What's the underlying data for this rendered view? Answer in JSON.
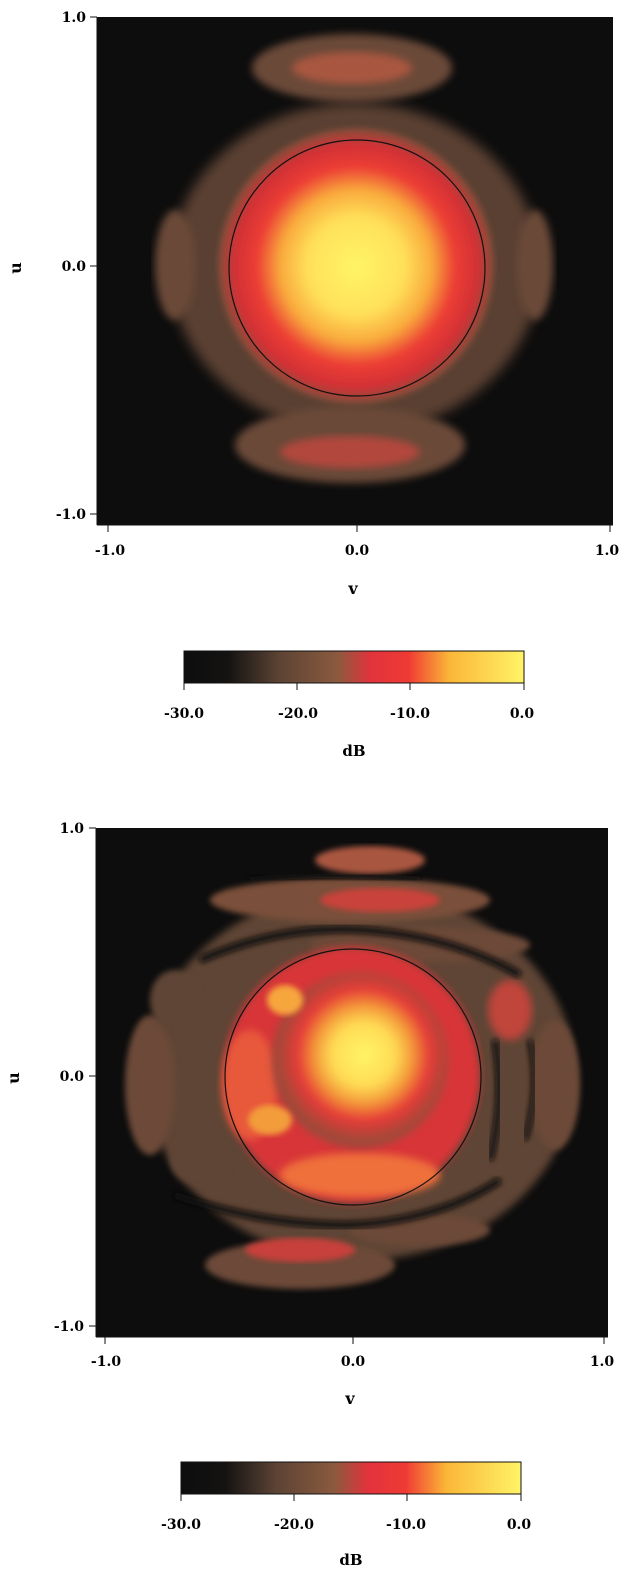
{
  "chart_data": [
    {
      "type": "heatmap",
      "title": "",
      "xlabel": "v",
      "ylabel": "u",
      "xlim": [
        -1.0,
        1.0
      ],
      "ylim": [
        -1.0,
        1.0
      ],
      "xticks": [
        "-1.0",
        "0.0",
        "1.0"
      ],
      "yticks": [
        "1.0",
        "0.0",
        "-1.0"
      ],
      "unit_circle_radius": 0.5,
      "pattern": "smooth",
      "colorbar": {
        "label": "dB",
        "range": [
          -30.0,
          0.0
        ],
        "ticks": [
          "-30.0",
          "-20.0",
          "-10.0",
          "0.0"
        ]
      }
    },
    {
      "type": "heatmap",
      "title": "",
      "xlabel": "v",
      "ylabel": "u",
      "xlim": [
        -1.0,
        1.0
      ],
      "ylim": [
        -1.0,
        1.0
      ],
      "xticks": [
        "-1.0",
        "0.0",
        "1.0"
      ],
      "yticks": [
        "1.0",
        "0.0",
        "-1.0"
      ],
      "unit_circle_radius": 0.5,
      "pattern": "mottled",
      "colorbar": {
        "label": "dB",
        "range": [
          -30.0,
          0.0
        ],
        "ticks": [
          "-30.0",
          "-20.0",
          "-10.0",
          "0.0"
        ]
      }
    }
  ],
  "colors": {
    "background": "#0d0d0d",
    "colormap": [
      "#0d0d0d",
      "#1f1a16",
      "#5c4334",
      "#8a5a3e",
      "#e2333d",
      "#f0482e",
      "#fbb637",
      "#fff467"
    ]
  }
}
